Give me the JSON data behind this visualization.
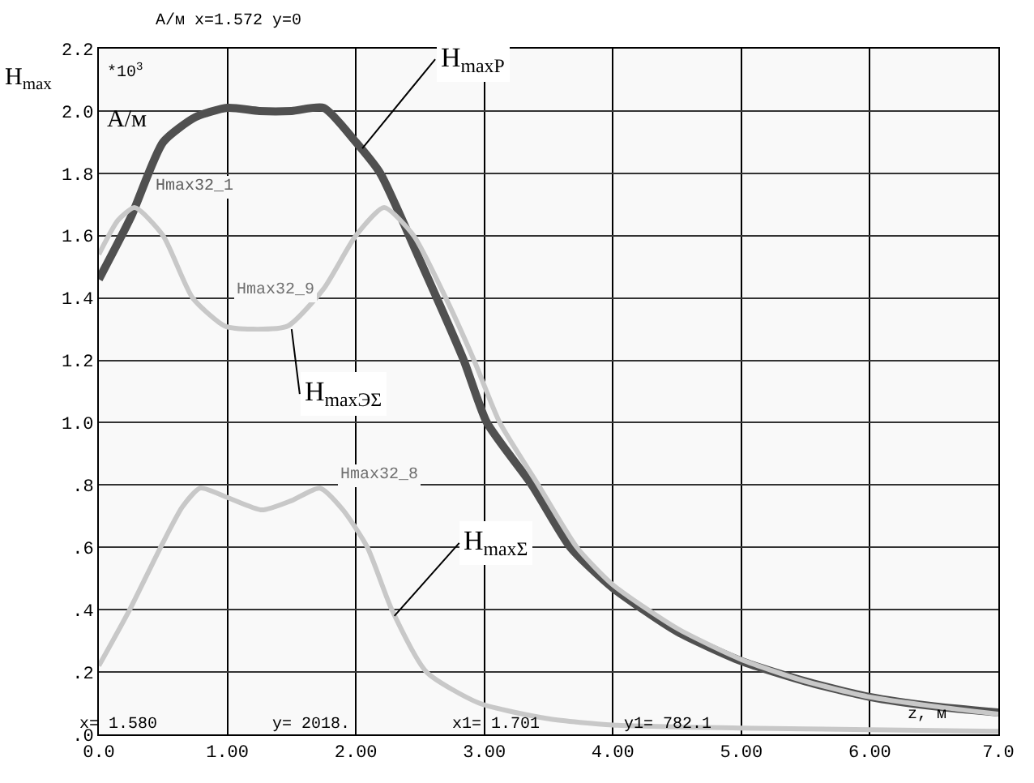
{
  "chart_data": {
    "type": "line",
    "ylabel": "H$_{max}$",
    "xlabel": "z, м",
    "xlim": [
      0,
      7
    ],
    "ylim": [
      0,
      2.2
    ],
    "xticks": [
      {
        "value": 0,
        "label": "0.0"
      },
      {
        "value": 1,
        "label": "1.00"
      },
      {
        "value": 2,
        "label": "2.00"
      },
      {
        "value": 3,
        "label": "3.00"
      },
      {
        "value": 4,
        "label": "4.00"
      },
      {
        "value": 5,
        "label": "5.00"
      },
      {
        "value": 6,
        "label": "6.00"
      },
      {
        "value": 7,
        "label": "7.0"
      }
    ],
    "yticks": [
      {
        "value": 0,
        "label": ".0"
      },
      {
        "value": 0.2,
        "label": ".2"
      },
      {
        "value": 0.4,
        "label": ".4"
      },
      {
        "value": 0.6,
        "label": ".6"
      },
      {
        "value": 0.8,
        "label": ".8"
      },
      {
        "value": 1.0,
        "label": "1.0"
      },
      1.2,
      1.4,
      1.6,
      1.8,
      {
        "value": 2.0,
        "label": "2.0"
      },
      2.2
    ],
    "grid": true,
    "marker": "none",
    "line_style": "solid",
    "series": [
      {
        "color": "#505050",
        "x": [
          0,
          0.25,
          0.5,
          0.75,
          1.0,
          1.25,
          1.5,
          1.75,
          2.0,
          2.19,
          2.5,
          2.84,
          3.02,
          3.37,
          3.67,
          4.0,
          4.5,
          5.0,
          5.5,
          6.0,
          6.5,
          7.0
        ],
        "values": [
          1.46,
          1.66,
          1.9,
          1.98,
          2.01,
          2.0,
          2.0,
          2.01,
          1.9,
          1.8,
          1.52,
          1.2,
          1.0,
          0.8,
          0.6,
          0.47,
          0.33,
          0.235,
          0.17,
          0.12,
          0.09,
          0.07
        ]
      },
      {
        "color": "#c8c8c8",
        "x": [
          0,
          0.15,
          0.28,
          0.5,
          0.73,
          0.98,
          1.2,
          1.47,
          1.75,
          2.0,
          2.22,
          2.45,
          2.7,
          2.92,
          3.12,
          3.42,
          3.72,
          4.0,
          4.5,
          5.0,
          5.5,
          6.0,
          6.5,
          7.0
        ],
        "values": [
          1.54,
          1.65,
          1.69,
          1.6,
          1.4,
          1.31,
          1.3,
          1.31,
          1.43,
          1.6,
          1.69,
          1.6,
          1.4,
          1.2,
          1.0,
          0.8,
          0.6,
          0.48,
          0.34,
          0.24,
          0.17,
          0.12,
          0.09,
          0.065
        ]
      },
      {
        "color": "#c8c8c8",
        "x": [
          0,
          0.24,
          0.48,
          0.65,
          0.79,
          1.0,
          1.27,
          1.5,
          1.72,
          1.9,
          2.09,
          2.28,
          2.55,
          2.96,
          3.5,
          4.0,
          5.0,
          6.0,
          7.0
        ],
        "values": [
          0.22,
          0.4,
          0.6,
          0.73,
          0.79,
          0.76,
          0.72,
          0.75,
          0.79,
          0.72,
          0.6,
          0.4,
          0.2,
          0.1,
          0.05,
          0.03,
          0.02,
          0.015,
          0.01
        ]
      }
    ],
    "annotations": [
      "А/м x=1.572 y=0",
      "*10$^{3}$",
      "А/м",
      "x= 1.580",
      "y= 2018.",
      "x1= 1.701",
      "y1= 782.1",
      "Hmax32_1",
      "Hmax32_9",
      "Hmax32_8",
      {
        "text": "H$_{maxP}$",
        "x": 2.05,
        "y": 1.88
      },
      {
        "text": "H$_{maxЭΣ}$",
        "x": 1.5,
        "y": 1.3
      },
      {
        "text": "H$_{maxΣ}$",
        "x": 2.3,
        "y": 0.38
      }
    ]
  }
}
